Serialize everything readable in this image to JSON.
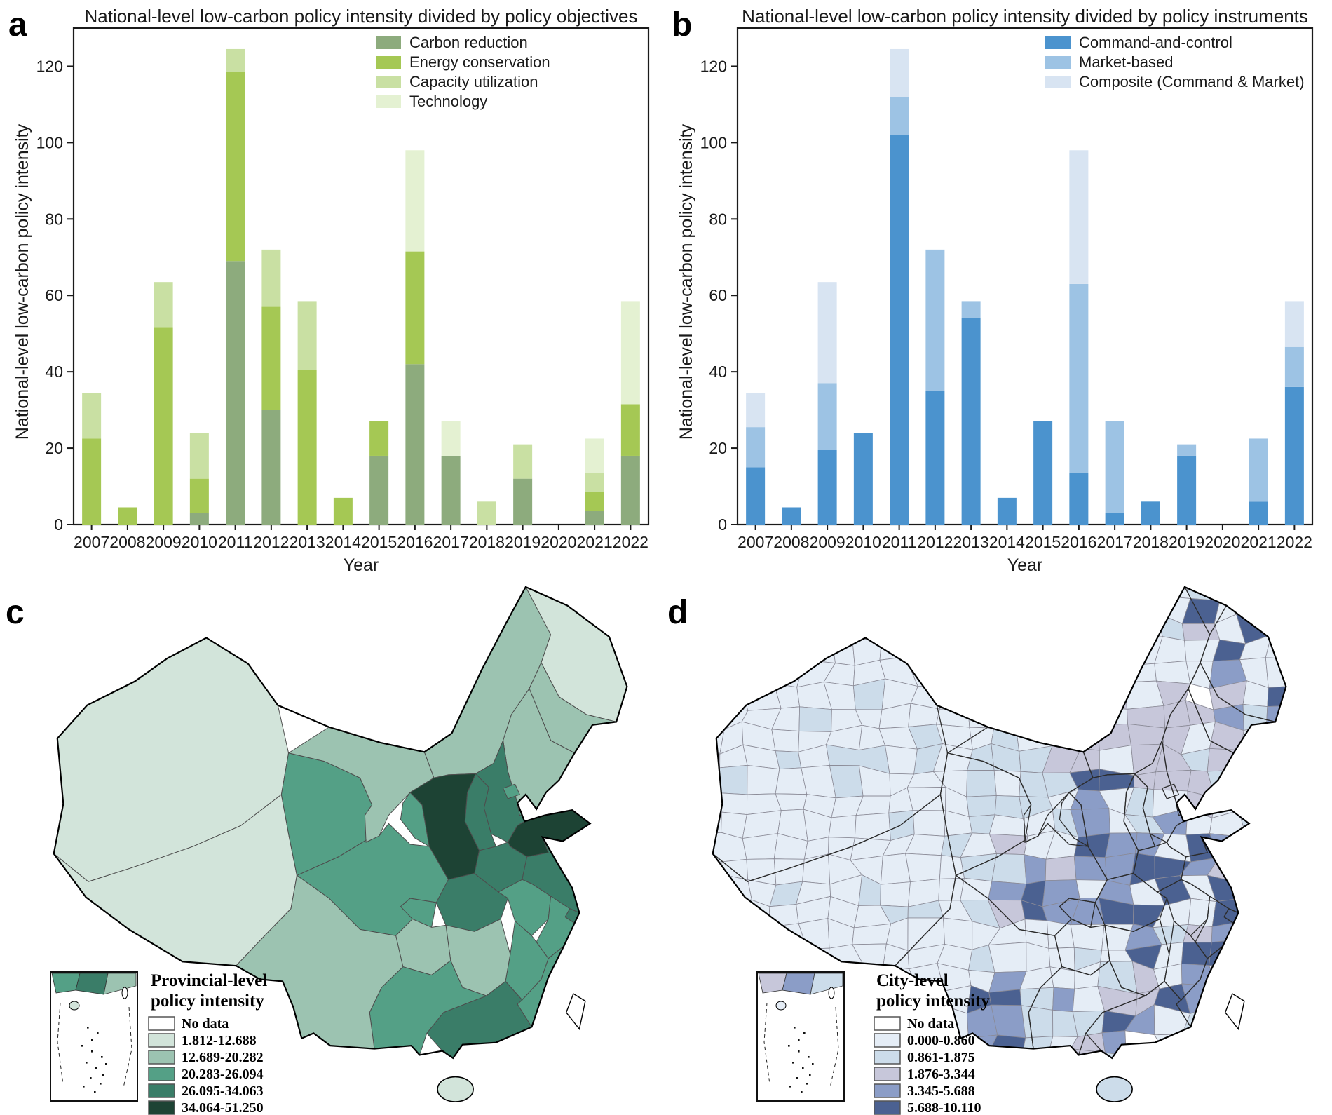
{
  "page": {
    "background": "#ffffff"
  },
  "panels": {
    "a": {
      "letter": "a",
      "title": "National-level low-carbon policy intensity divided by policy objectives",
      "ylabel": "National-level low-carbon policy intensity",
      "xlabel": "Year"
    },
    "b": {
      "letter": "b",
      "title": "National-level low-carbon policy intensity divided by policy instruments",
      "ylabel": "National-level low-carbon policy intensity",
      "xlabel": "Year"
    },
    "c": {
      "letter": "c",
      "legend_title_lines": [
        "Provincial-level",
        "policy intensity"
      ],
      "classes": [
        {
          "label": "No data",
          "color": "#ffffff"
        },
        {
          "label": "1.812-12.688",
          "color": "#d2e4da"
        },
        {
          "label": "12.689-20.282",
          "color": "#9cc3b1"
        },
        {
          "label": "20.283-26.094",
          "color": "#54a086"
        },
        {
          "label": "26.095-34.063",
          "color": "#3a7d68"
        },
        {
          "label": "34.064-51.250",
          "color": "#1d4334"
        }
      ],
      "province_classes": {
        "xinjiang": 1,
        "tibet": 1,
        "qinghai": 3,
        "gansu": 2,
        "inner-mongolia": 2,
        "heilongjiang": 1,
        "jilin": 2,
        "liaoning": 2,
        "hebei": 4,
        "beijing": 3,
        "tianjin": 3,
        "shanxi": 4,
        "shaanxi": 5,
        "ningxia": 3,
        "shandong": 5,
        "henan": 4,
        "jiangsu": 4,
        "anhui": 3,
        "hubei": 4,
        "chongqing": 3,
        "sichuan": 3,
        "shanghai": 4,
        "zhejiang": 3,
        "jiangxi": 3,
        "hunan": 2,
        "guizhou": 2,
        "fujian": 3,
        "guangdong": 4,
        "guangxi": 3,
        "yunnan": 2,
        "hainan": 1,
        "taiwan": 0
      }
    },
    "d": {
      "letter": "d",
      "legend_title_lines": [
        "City-level",
        "policy intensity"
      ],
      "classes": [
        {
          "label": "No data",
          "color": "#ffffff"
        },
        {
          "label": "0.000-0.860",
          "color": "#e5edf6"
        },
        {
          "label": "0.861-1.875",
          "color": "#ccdcea"
        },
        {
          "label": "1.876-3.344",
          "color": "#c7c7da"
        },
        {
          "label": "3.345-5.688",
          "color": "#8b9dc7"
        },
        {
          "label": "5.688-10.110",
          "color": "#4b6191"
        }
      ]
    }
  },
  "chart_data": [
    {
      "type": "bar",
      "stacked": true,
      "panel": "a",
      "title": "National-level low-carbon policy intensity divided by policy objectives",
      "xlabel": "Year",
      "ylabel": "National-level low-carbon policy intensity",
      "categories": [
        "2007",
        "2008",
        "2009",
        "2010",
        "2011",
        "2012",
        "2013",
        "2014",
        "2015",
        "2016",
        "2017",
        "2018",
        "2019",
        "2020",
        "2021",
        "2022"
      ],
      "ylim": [
        0,
        130
      ],
      "yticks": [
        0,
        20,
        40,
        60,
        80,
        100,
        120
      ],
      "grid": false,
      "legend_position": "top-right",
      "series": [
        {
          "name": "Carbon reduction",
          "color": "#8dab7d",
          "values": [
            0,
            0,
            0,
            3,
            69,
            30,
            0,
            0,
            18,
            42,
            18,
            0,
            12,
            0,
            3.5,
            18
          ]
        },
        {
          "name": "Energy conservation",
          "color": "#a5c854",
          "values": [
            22.5,
            4.5,
            51.5,
            9,
            49.5,
            27,
            40.5,
            7,
            9,
            29.5,
            0,
            0,
            0,
            0,
            5,
            13.5
          ]
        },
        {
          "name": "Capacity utilization",
          "color": "#c9e0a3",
          "values": [
            12,
            0,
            12,
            12,
            6,
            15,
            18,
            0,
            0,
            0,
            0,
            6,
            9,
            0,
            5,
            0
          ]
        },
        {
          "name": "Technology",
          "color": "#e4f1d2",
          "values": [
            0,
            0,
            0,
            0,
            0,
            0,
            0,
            0,
            0,
            26.5,
            9,
            0,
            0,
            0,
            9,
            27
          ]
        }
      ]
    },
    {
      "type": "bar",
      "stacked": true,
      "panel": "b",
      "title": "National-level low-carbon policy intensity divided by policy instruments",
      "xlabel": "Year",
      "ylabel": "National-level low-carbon policy intensity",
      "categories": [
        "2007",
        "2008",
        "2009",
        "2010",
        "2011",
        "2012",
        "2013",
        "2014",
        "2015",
        "2016",
        "2017",
        "2018",
        "2019",
        "2020",
        "2021",
        "2022"
      ],
      "ylim": [
        0,
        130
      ],
      "yticks": [
        0,
        20,
        40,
        60,
        80,
        100,
        120
      ],
      "grid": false,
      "legend_position": "top-right",
      "series": [
        {
          "name": "Command-and-control",
          "color": "#4b93ce",
          "values": [
            15,
            4.5,
            19.5,
            24,
            102,
            35,
            54,
            7,
            27,
            13.5,
            3,
            6,
            18,
            0,
            6,
            36
          ]
        },
        {
          "name": "Market-based",
          "color": "#9dc3e4",
          "values": [
            10.5,
            0,
            17.5,
            0,
            10,
            37,
            4.5,
            0,
            0,
            49.5,
            24,
            0,
            3,
            0,
            16.5,
            10.5
          ]
        },
        {
          "name": "Composite (Command & Market)",
          "color": "#d8e4f2",
          "values": [
            9,
            0,
            26.5,
            0,
            12.5,
            0,
            0,
            0,
            0,
            35,
            0,
            0,
            0,
            0,
            0,
            12
          ]
        }
      ]
    }
  ]
}
